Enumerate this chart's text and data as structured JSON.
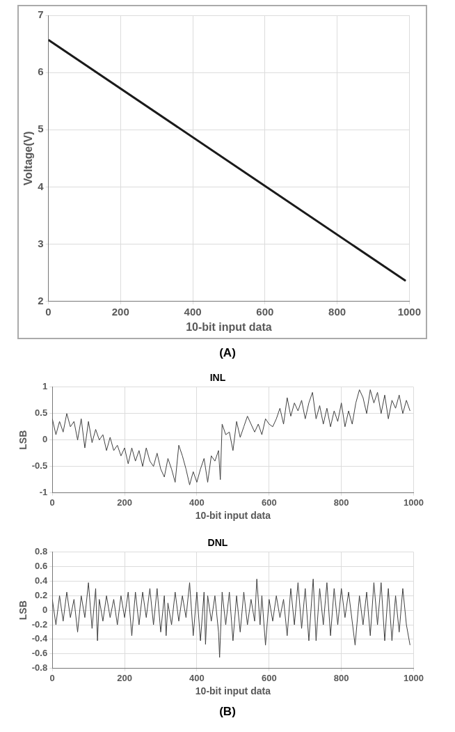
{
  "chart_data": [
    {
      "type": "line",
      "xlabel": "10-bit input data",
      "ylabel": "Voltage(V)",
      "x": [
        0,
        990
      ],
      "values": [
        6.57,
        2.36
      ],
      "color": "#1a1a1a",
      "xlim": [
        0,
        1000
      ],
      "ylim": [
        2,
        7
      ],
      "xticks": [
        0,
        200,
        400,
        600,
        800,
        1000
      ],
      "yticks": [
        2,
        3,
        4,
        5,
        6,
        7
      ],
      "grid": true,
      "annotations": [
        "(A)"
      ]
    },
    {
      "type": "line",
      "title": "INL",
      "xlabel": "10-bit input data",
      "ylabel": "LSB",
      "color": "#404040",
      "xlim": [
        0,
        1000
      ],
      "ylim": [
        -1,
        1
      ],
      "xticks": [
        0,
        200,
        400,
        600,
        800,
        1000
      ],
      "yticks": [
        -1,
        -0.5,
        0,
        0.5,
        1
      ],
      "grid": true,
      "x": [
        0,
        10,
        20,
        30,
        40,
        50,
        60,
        70,
        80,
        90,
        100,
        110,
        120,
        130,
        140,
        150,
        160,
        170,
        180,
        190,
        200,
        210,
        220,
        230,
        240,
        250,
        260,
        270,
        280,
        290,
        300,
        310,
        320,
        330,
        340,
        350,
        360,
        370,
        380,
        390,
        400,
        410,
        420,
        430,
        440,
        450,
        460,
        465,
        470,
        480,
        490,
        500,
        510,
        520,
        530,
        540,
        550,
        560,
        570,
        580,
        590,
        600,
        610,
        620,
        630,
        640,
        650,
        660,
        670,
        680,
        690,
        700,
        710,
        720,
        730,
        740,
        750,
        760,
        770,
        780,
        790,
        800,
        810,
        820,
        830,
        840,
        850,
        860,
        870,
        880,
        890,
        900,
        910,
        920,
        930,
        940,
        950,
        960,
        970,
        980,
        990
      ],
      "values": [
        0.4,
        0.1,
        0.35,
        0.15,
        0.5,
        0.25,
        0.35,
        0.0,
        0.4,
        -0.15,
        0.35,
        -0.05,
        0.2,
        0.0,
        0.1,
        -0.2,
        0.05,
        -0.2,
        -0.1,
        -0.3,
        -0.15,
        -0.45,
        -0.15,
        -0.4,
        -0.2,
        -0.5,
        -0.15,
        -0.4,
        -0.5,
        -0.25,
        -0.55,
        -0.7,
        -0.35,
        -0.55,
        -0.8,
        -0.1,
        -0.3,
        -0.55,
        -0.85,
        -0.6,
        -0.8,
        -0.55,
        -0.35,
        -0.8,
        -0.3,
        -0.4,
        -0.2,
        -0.75,
        0.3,
        0.1,
        0.15,
        -0.2,
        0.35,
        0.05,
        0.25,
        0.45,
        0.3,
        0.15,
        0.3,
        0.1,
        0.4,
        0.3,
        0.25,
        0.4,
        0.6,
        0.3,
        0.8,
        0.45,
        0.7,
        0.55,
        0.75,
        0.4,
        0.7,
        0.9,
        0.4,
        0.65,
        0.3,
        0.6,
        0.25,
        0.55,
        0.35,
        0.7,
        0.25,
        0.55,
        0.3,
        0.7,
        0.95,
        0.8,
        0.5,
        0.95,
        0.7,
        0.9,
        0.5,
        0.85,
        0.4,
        0.75,
        0.6,
        0.85,
        0.5,
        0.75,
        0.55
      ]
    },
    {
      "type": "line",
      "title": "DNL",
      "xlabel": "10-bit input data",
      "ylabel": "LSB",
      "color": "#404040",
      "xlim": [
        0,
        1000
      ],
      "ylim": [
        -0.8,
        0.8
      ],
      "xticks": [
        0,
        200,
        400,
        600,
        800,
        1000
      ],
      "yticks": [
        -0.8,
        -0.6,
        -0.4,
        -0.2,
        0,
        0.2,
        0.4,
        0.6,
        0.8
      ],
      "grid": true,
      "annotations": [
        "(B)"
      ],
      "x": [
        0,
        10,
        20,
        30,
        40,
        50,
        60,
        70,
        80,
        90,
        100,
        110,
        120,
        125,
        130,
        140,
        150,
        160,
        170,
        180,
        190,
        200,
        210,
        220,
        230,
        240,
        250,
        260,
        270,
        280,
        290,
        300,
        310,
        315,
        320,
        330,
        340,
        350,
        360,
        370,
        380,
        390,
        400,
        410,
        420,
        424,
        430,
        440,
        450,
        460,
        463,
        470,
        480,
        490,
        500,
        510,
        520,
        530,
        540,
        550,
        560,
        566,
        575,
        580,
        590,
        600,
        610,
        620,
        630,
        640,
        650,
        660,
        670,
        680,
        690,
        700,
        710,
        720,
        722,
        730,
        740,
        750,
        760,
        770,
        780,
        790,
        800,
        810,
        820,
        838,
        850,
        860,
        870,
        880,
        890,
        900,
        910,
        920,
        930,
        940,
        950,
        960,
        970,
        980,
        990
      ],
      "values": [
        0.15,
        -0.2,
        0.2,
        -0.15,
        0.25,
        -0.1,
        0.15,
        -0.3,
        0.2,
        -0.1,
        0.38,
        -0.25,
        0.3,
        -0.42,
        0.15,
        -0.15,
        0.2,
        -0.1,
        0.15,
        -0.2,
        0.2,
        -0.1,
        0.25,
        -0.35,
        0.25,
        -0.2,
        0.25,
        -0.1,
        0.3,
        -0.2,
        0.3,
        -0.3,
        0.2,
        -0.35,
        0.1,
        -0.2,
        0.25,
        -0.15,
        0.2,
        -0.1,
        0.38,
        -0.35,
        0.25,
        -0.42,
        0.25,
        -0.47,
        0.2,
        -0.15,
        0.2,
        -0.3,
        -0.65,
        0.25,
        -0.2,
        0.25,
        -0.42,
        0.2,
        -0.3,
        0.25,
        -0.2,
        0.15,
        -0.15,
        0.43,
        -0.2,
        0.2,
        -0.48,
        0.15,
        -0.15,
        0.2,
        -0.1,
        0.15,
        -0.35,
        0.3,
        -0.2,
        0.38,
        -0.25,
        0.3,
        -0.42,
        0.3,
        0.43,
        -0.42,
        0.3,
        -0.2,
        0.38,
        -0.35,
        0.3,
        -0.2,
        0.3,
        -0.1,
        0.25,
        -0.48,
        0.2,
        -0.2,
        0.25,
        -0.35,
        0.38,
        -0.2,
        0.38,
        -0.42,
        0.3,
        -0.42,
        0.2,
        -0.3,
        0.3,
        -0.2,
        -0.48
      ]
    }
  ]
}
